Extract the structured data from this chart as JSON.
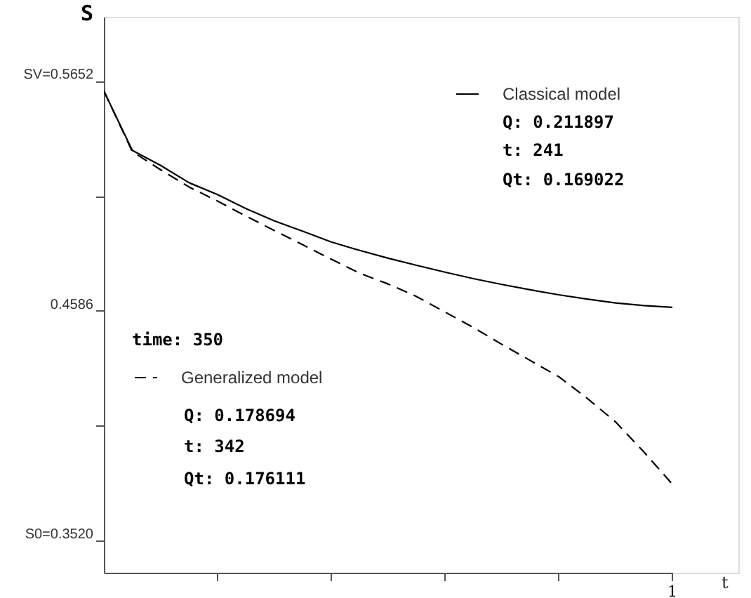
{
  "chart_data": {
    "type": "line",
    "ylabel": "S",
    "xlabel": "t",
    "categories": [
      null,
      null,
      null,
      null,
      null,
      null,
      null,
      null,
      null,
      null,
      null,
      null,
      null,
      null,
      null,
      null,
      null,
      null,
      null,
      null,
      null
    ],
    "ylim": [
      0.337,
      0.595
    ],
    "yticks": [
      {
        "value": 0.5652,
        "label": "SV=0.5652"
      },
      {
        "value": 0.5119,
        "label": null
      },
      {
        "value": 0.4586,
        "label": "0.4586"
      },
      {
        "value": 0.4053,
        "label": null
      },
      {
        "value": 0.352,
        "label": "S0=0.3520"
      }
    ],
    "grid": false,
    "legend": "top right",
    "series": [
      {
        "name": "Classical model",
        "color": "#000000",
        "line_style": "solid",
        "values": [
          0.5606,
          0.533,
          0.526,
          0.518,
          0.5125,
          0.506,
          0.5003,
          0.4955,
          0.4905,
          0.4866,
          0.483,
          0.4797,
          0.4765,
          0.4735,
          0.4708,
          0.4683,
          0.466,
          0.464,
          0.4622,
          0.461,
          0.4602
        ]
      },
      {
        "name": "Generalized model",
        "color": "#000000",
        "line_style": "dashed",
        "values": [
          0.5606,
          0.5325,
          0.524,
          0.516,
          0.5095,
          0.5025,
          0.4958,
          0.4892,
          0.4825,
          0.476,
          0.471,
          0.4652,
          0.458,
          0.4508,
          0.443,
          0.4355,
          0.428,
          0.418,
          0.407,
          0.393,
          0.3781
        ]
      }
    ],
    "annotations": [
      "Q: 0.211897",
      "t: 241",
      "Qt: 0.169022",
      "time: 350",
      "Q: 0.178694",
      "t: 342",
      "Qt: 0.176111",
      "1"
    ]
  }
}
